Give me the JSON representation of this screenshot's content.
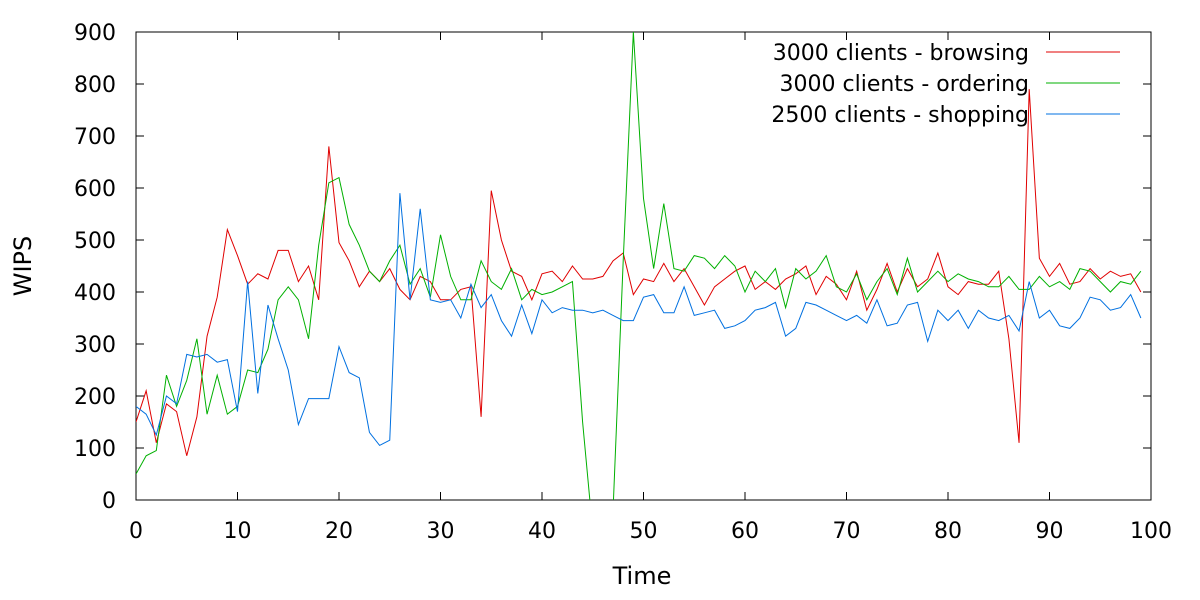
{
  "chart_data": {
    "type": "line",
    "title": "",
    "xlabel": "Time",
    "ylabel": "WIPS",
    "xlim": [
      0,
      100
    ],
    "ylim": [
      0,
      900
    ],
    "x_ticks": [
      0,
      10,
      20,
      30,
      40,
      50,
      60,
      70,
      80,
      90,
      100
    ],
    "y_ticks": [
      0,
      100,
      200,
      300,
      400,
      500,
      600,
      700,
      800,
      900
    ],
    "grid": false,
    "legend_position": "top-right",
    "series": [
      {
        "name": "3000 clients - browsing",
        "color": "#e00000",
        "x": [
          0,
          1,
          2,
          3,
          4,
          5,
          6,
          7,
          8,
          9,
          10,
          11,
          12,
          13,
          14,
          15,
          16,
          17,
          18,
          19,
          20,
          21,
          22,
          23,
          24,
          25,
          26,
          27,
          28,
          29,
          30,
          31,
          32,
          33,
          34,
          35,
          36,
          37,
          38,
          39,
          40,
          41,
          42,
          43,
          44,
          45,
          46,
          47,
          48,
          49,
          50,
          51,
          52,
          53,
          54,
          55,
          56,
          57,
          58,
          59,
          60,
          61,
          62,
          63,
          64,
          65,
          66,
          67,
          68,
          69,
          70,
          71,
          72,
          73,
          74,
          75,
          76,
          77,
          78,
          79,
          80,
          81,
          82,
          83,
          84,
          85,
          86,
          87,
          88,
          89,
          90,
          91,
          92,
          93,
          94,
          95,
          96,
          97,
          98,
          99
        ],
        "values": [
          150,
          210,
          110,
          185,
          170,
          85,
          160,
          315,
          390,
          520,
          470,
          415,
          435,
          425,
          480,
          480,
          420,
          450,
          385,
          680,
          495,
          460,
          410,
          440,
          420,
          445,
          405,
          385,
          430,
          420,
          385,
          385,
          405,
          410,
          160,
          595,
          500,
          440,
          430,
          385,
          435,
          440,
          420,
          450,
          425,
          425,
          430,
          460,
          475,
          395,
          425,
          420,
          455,
          420,
          445,
          410,
          375,
          410,
          425,
          440,
          450,
          405,
          420,
          405,
          425,
          435,
          450,
          395,
          430,
          415,
          385,
          440,
          365,
          405,
          455,
          400,
          445,
          410,
          425,
          475,
          410,
          395,
          420,
          415,
          415,
          440,
          310,
          110,
          790,
          465,
          430,
          455,
          415,
          420,
          445,
          425,
          440,
          430,
          435,
          400
        ]
      },
      {
        "name": "3000 clients - ordering",
        "color": "#00b000",
        "x": [
          0,
          1,
          2,
          3,
          4,
          5,
          6,
          7,
          8,
          9,
          10,
          11,
          12,
          13,
          14,
          15,
          16,
          17,
          18,
          19,
          20,
          21,
          22,
          23,
          24,
          25,
          26,
          27,
          28,
          29,
          30,
          31,
          32,
          33,
          34,
          35,
          36,
          37,
          38,
          39,
          40,
          41,
          42,
          43,
          44,
          45,
          46,
          47,
          48,
          49,
          50,
          51,
          52,
          53,
          54,
          55,
          56,
          57,
          58,
          59,
          60,
          61,
          62,
          63,
          64,
          65,
          66,
          67,
          68,
          69,
          70,
          71,
          72,
          73,
          74,
          75,
          76,
          77,
          78,
          79,
          80,
          81,
          82,
          83,
          84,
          85,
          86,
          87,
          88,
          89,
          90,
          91,
          92,
          93,
          94,
          95,
          96,
          97,
          98,
          99
        ],
        "values": [
          50,
          85,
          95,
          240,
          180,
          230,
          310,
          165,
          240,
          165,
          180,
          250,
          245,
          290,
          385,
          410,
          385,
          310,
          490,
          610,
          620,
          530,
          490,
          440,
          420,
          460,
          490,
          415,
          445,
          390,
          510,
          430,
          385,
          385,
          460,
          420,
          405,
          445,
          385,
          405,
          395,
          400,
          410,
          420,
          150,
          -60,
          -70,
          -20,
          460,
          900,
          580,
          445,
          570,
          445,
          440,
          470,
          465,
          445,
          470,
          450,
          400,
          440,
          420,
          445,
          370,
          445,
          425,
          440,
          470,
          410,
          400,
          435,
          385,
          420,
          445,
          395,
          465,
          400,
          420,
          440,
          420,
          435,
          425,
          420,
          410,
          410,
          430,
          405,
          405,
          430,
          410,
          420,
          405,
          445,
          440,
          420,
          400,
          420,
          415,
          440
        ]
      },
      {
        "name": "2500 clients - shopping",
        "color": "#0070e0",
        "x": [
          0,
          1,
          2,
          3,
          4,
          5,
          6,
          7,
          8,
          9,
          10,
          11,
          12,
          13,
          14,
          15,
          16,
          17,
          18,
          19,
          20,
          21,
          22,
          23,
          24,
          25,
          26,
          27,
          28,
          29,
          30,
          31,
          32,
          33,
          34,
          35,
          36,
          37,
          38,
          39,
          40,
          41,
          42,
          43,
          44,
          45,
          46,
          47,
          48,
          49,
          50,
          51,
          52,
          53,
          54,
          55,
          56,
          57,
          58,
          59,
          60,
          61,
          62,
          63,
          64,
          65,
          66,
          67,
          68,
          69,
          70,
          71,
          72,
          73,
          74,
          75,
          76,
          77,
          78,
          79,
          80,
          81,
          82,
          83,
          84,
          85,
          86,
          87,
          88,
          89,
          90,
          91,
          92,
          93,
          94,
          95,
          96,
          97,
          98,
          99
        ],
        "values": [
          180,
          165,
          125,
          200,
          185,
          280,
          275,
          280,
          265,
          270,
          170,
          420,
          205,
          375,
          310,
          250,
          145,
          195,
          195,
          195,
          295,
          245,
          235,
          130,
          105,
          115,
          590,
          385,
          560,
          385,
          380,
          385,
          350,
          415,
          370,
          395,
          345,
          315,
          375,
          320,
          385,
          360,
          370,
          365,
          365,
          360,
          365,
          355,
          345,
          345,
          390,
          395,
          360,
          360,
          410,
          355,
          360,
          365,
          330,
          335,
          345,
          365,
          370,
          380,
          315,
          330,
          380,
          375,
          365,
          355,
          345,
          355,
          340,
          385,
          335,
          340,
          375,
          380,
          305,
          365,
          345,
          365,
          330,
          365,
          350,
          345,
          355,
          325,
          420,
          350,
          365,
          335,
          330,
          350,
          390,
          385,
          365,
          370,
          395,
          350
        ]
      }
    ]
  }
}
